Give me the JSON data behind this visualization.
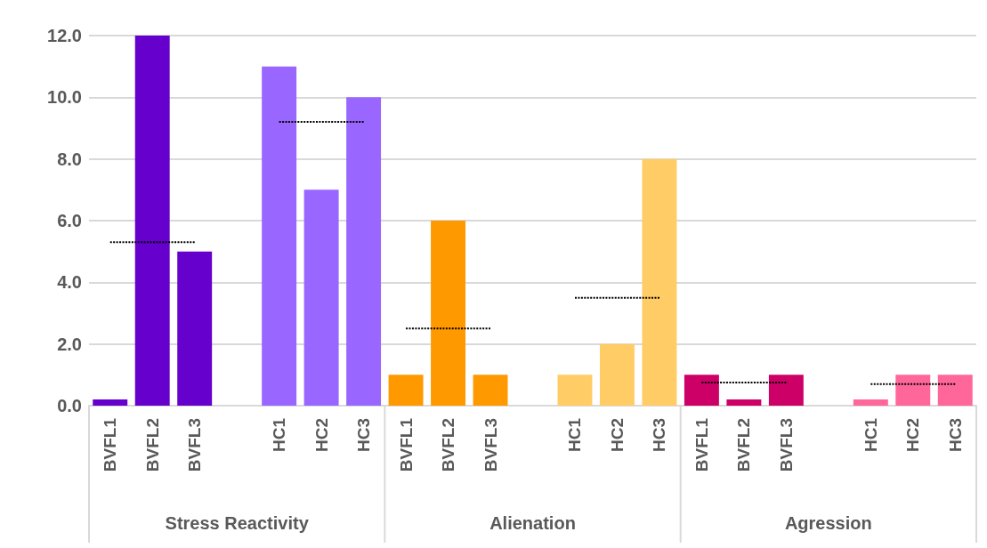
{
  "chart_data": {
    "type": "bar",
    "categories": [
      "BVFL1",
      "BVFL2",
      "BVFL3",
      null,
      "HC1",
      "HC2",
      "HC3",
      "BVFL1",
      "BVFL2",
      "BVFL3",
      null,
      "HC1",
      "HC2",
      "HC3",
      "BVFL1",
      "BVFL2",
      "BVFL3",
      null,
      "HC1",
      "HC2",
      "HC3"
    ],
    "series": [
      {
        "values": [
          0.2,
          12,
          5,
          null,
          11,
          7,
          10,
          1,
          6,
          1,
          null,
          1,
          2,
          8,
          1,
          0.2,
          1,
          null,
          0.2,
          1,
          1
        ],
        "colors": [
          "#6600cc",
          "#6600cc",
          "#6600cc",
          null,
          "#9966ff",
          "#9966ff",
          "#9966ff",
          "#ff9900",
          "#ff9900",
          "#ff9900",
          null,
          "#ffcc66",
          "#ffcc66",
          "#ffcc66",
          "#cc0066",
          "#cc0066",
          "#cc0066",
          null,
          "#ff6699",
          "#ff6699",
          "#ff6699"
        ]
      },
      {
        "type": "line",
        "color": "#000000",
        "line_style": "dotted",
        "marker": "none",
        "values": [
          5.3,
          5.3,
          5.3,
          null,
          null,
          null,
          null,
          null,
          null,
          null,
          null,
          null,
          null,
          null,
          null,
          null,
          null,
          null,
          null,
          null,
          null
        ]
      },
      {
        "type": "line",
        "color": "#000000",
        "line_style": "dotted",
        "marker": "none",
        "values": [
          null,
          null,
          null,
          null,
          9.2,
          9.2,
          9.2,
          null,
          null,
          null,
          null,
          null,
          null,
          null,
          null,
          null,
          null,
          null,
          null,
          null,
          null
        ]
      },
      {
        "type": "line",
        "color": "#000000",
        "line_style": "dotted",
        "marker": "none",
        "values": [
          null,
          null,
          null,
          null,
          null,
          null,
          null,
          2.5,
          2.5,
          2.5,
          null,
          null,
          null,
          null,
          null,
          null,
          null,
          null,
          null,
          null,
          null
        ]
      },
      {
        "type": "line",
        "color": "#000000",
        "line_style": "dotted",
        "marker": "none",
        "values": [
          null,
          null,
          null,
          null,
          null,
          null,
          null,
          null,
          null,
          null,
          null,
          3.5,
          3.5,
          3.5,
          null,
          null,
          null,
          null,
          null,
          null,
          null
        ]
      },
      {
        "type": "line",
        "color": "#000000",
        "line_style": "dotted",
        "marker": "none",
        "values": [
          null,
          null,
          null,
          null,
          null,
          null,
          null,
          null,
          null,
          null,
          null,
          null,
          null,
          null,
          0.75,
          0.75,
          0.75,
          null,
          null,
          null,
          null
        ]
      },
      {
        "type": "line",
        "color": "#000000",
        "line_style": "dotted",
        "marker": "none",
        "values": [
          null,
          null,
          null,
          null,
          null,
          null,
          null,
          null,
          null,
          null,
          null,
          null,
          null,
          null,
          null,
          null,
          null,
          null,
          0.7,
          0.7,
          0.7
        ]
      }
    ],
    "ylim": [
      0,
      12
    ],
    "yticks": [
      {
        "value": 0,
        "label": "0.0"
      },
      {
        "value": 2,
        "label": "2.0"
      },
      {
        "value": 4,
        "label": "4.0"
      },
      {
        "value": 6,
        "label": "6.0"
      },
      {
        "value": 8,
        "label": "8.0"
      },
      {
        "value": 10,
        "label": "10.0"
      },
      {
        "value": 12,
        "label": "12.0"
      }
    ],
    "grid": "y",
    "annotations": [
      "Stress Reactivity",
      "Alienation",
      "Agression"
    ]
  }
}
